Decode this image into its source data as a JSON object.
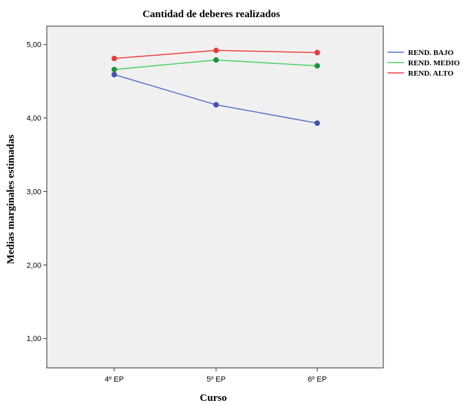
{
  "chart_data": {
    "type": "line",
    "title": "Cantidad de deberes realizados",
    "xlabel": "Curso",
    "ylabel": "Medias marginales estimadas",
    "categories": [
      "4º EP",
      "5º EP",
      "6º EP"
    ],
    "ylim": [
      0.6,
      5.25
    ],
    "yticks": [
      1,
      2,
      3,
      4,
      5
    ],
    "ytick_labels": [
      "1,00",
      "2,00",
      "3,00",
      "4,00",
      "5,00"
    ],
    "grid": false,
    "legend_position": "right",
    "series": [
      {
        "name": "REND. BAJO",
        "values": [
          4.59,
          4.18,
          3.93
        ],
        "color": "#3e53ac",
        "line_color": "#5a6fc8"
      },
      {
        "name": "REND. MEDIO",
        "values": [
          4.66,
          4.79,
          4.71
        ],
        "color": "#1e8f43",
        "line_color": "#46d15f"
      },
      {
        "name": "REND. ALTO",
        "values": [
          4.81,
          4.92,
          4.89
        ],
        "color": "#ea3b3b",
        "line_color": "#ec3b3b"
      }
    ],
    "plot_background": "#f0f0f0"
  }
}
